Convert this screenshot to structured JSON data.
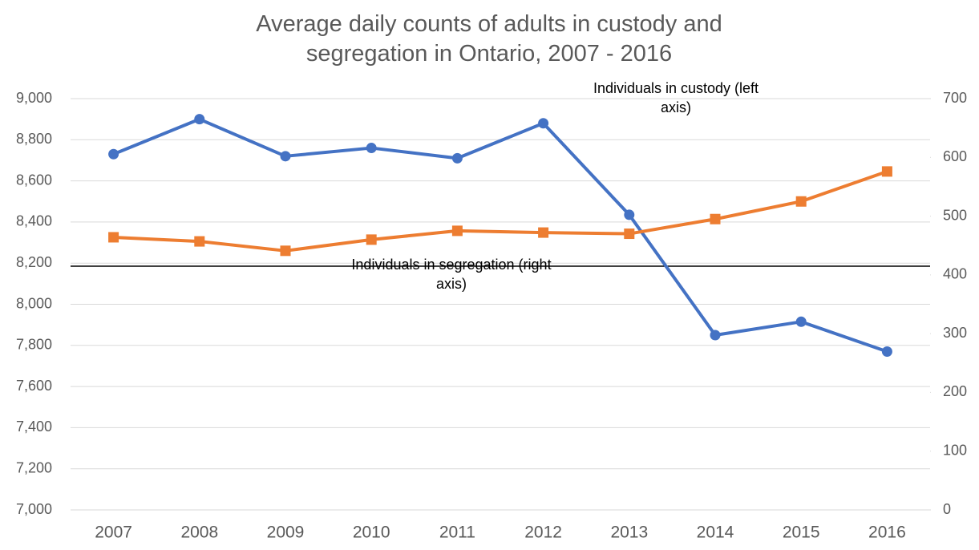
{
  "chart_data": {
    "type": "line",
    "title": "Average daily counts of adults in custody and segregation in Ontario, 2007 - 2016",
    "categories": [
      "2007",
      "2008",
      "2009",
      "2010",
      "2011",
      "2012",
      "2013",
      "2014",
      "2015",
      "2016"
    ],
    "series": [
      {
        "name": "Individuals in custody (left axis)",
        "color": "#4472c4",
        "marker": "circle",
        "values": [
          8730,
          8900,
          8720,
          8760,
          8710,
          8880,
          8435,
          7850,
          7915,
          7770
        ]
      },
      {
        "name": "Individuals in segregation (right axis)",
        "color": "#ed7d31",
        "marker": "square",
        "axis": "y2",
        "values": [
          464,
          457,
          441,
          460,
          475,
          472,
          470,
          495,
          525,
          576
        ]
      }
    ],
    "ylim": [
      7000,
      9000
    ],
    "yticks": [
      {
        "value": 7000,
        "label": "7,000"
      },
      {
        "value": 7200,
        "label": "7,200"
      },
      {
        "value": 7400,
        "label": "7,400"
      },
      {
        "value": 7600,
        "label": "7,600"
      },
      {
        "value": 7800,
        "label": "7,800"
      },
      {
        "value": 8000,
        "label": "8,000"
      },
      {
        "value": 8200,
        "label": "8,200"
      },
      {
        "value": 8400,
        "label": "8,400"
      },
      {
        "value": 8600,
        "label": "8,600"
      },
      {
        "value": 8800,
        "label": "8,800"
      },
      {
        "value": 9000,
        "label": "9,000"
      }
    ],
    "y2lim": [
      0,
      700
    ],
    "y2ticks": [
      0,
      100,
      200,
      300,
      400,
      500,
      600,
      700
    ],
    "grid": true
  }
}
